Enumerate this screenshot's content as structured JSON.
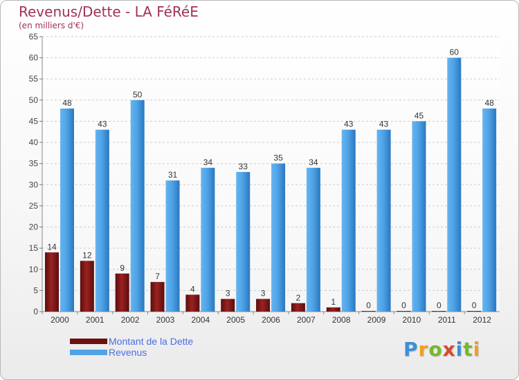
{
  "header": {
    "title": "Revenus/Dette - LA FéRéE",
    "subtitle": "(en milliers d'€)"
  },
  "legend": {
    "debt_label": "Montant de la Dette",
    "revenue_label": "Revenus"
  },
  "logo": {
    "letters": [
      "P",
      "r",
      "o",
      "x",
      "i",
      "t",
      "i"
    ],
    "colors": [
      "#3c8fd6",
      "#f0a020",
      "#78b828",
      "#d64a30",
      "#3c8fd6",
      "#78b828",
      "#f0a020"
    ]
  },
  "colors": {
    "debt": "#8b1a1a",
    "revenue": "#4fa3e6",
    "title": "#a0305a",
    "grid": "#cccccc"
  },
  "chart_data": {
    "type": "bar",
    "title": "Revenus/Dette - LA FéRéE",
    "subtitle": "(en milliers d'€)",
    "categories": [
      "2000",
      "2001",
      "2002",
      "2003",
      "2004",
      "2005",
      "2006",
      "2007",
      "2008",
      "2009",
      "2010",
      "2011",
      "2012"
    ],
    "series": [
      {
        "name": "Montant de la Dette",
        "color": "#8b1a1a",
        "values": [
          14,
          12,
          9,
          7,
          4,
          3,
          3,
          2,
          1,
          0,
          0,
          0,
          0
        ]
      },
      {
        "name": "Revenus",
        "color": "#4fa3e6",
        "values": [
          48,
          43,
          50,
          31,
          34,
          33,
          35,
          34,
          43,
          43,
          45,
          60,
          48
        ]
      }
    ],
    "ylim": [
      0,
      65
    ],
    "yticks": [
      0,
      5,
      10,
      15,
      20,
      25,
      30,
      35,
      40,
      45,
      50,
      55,
      60,
      65
    ],
    "grid": true,
    "legend_position": "bottom-left"
  }
}
